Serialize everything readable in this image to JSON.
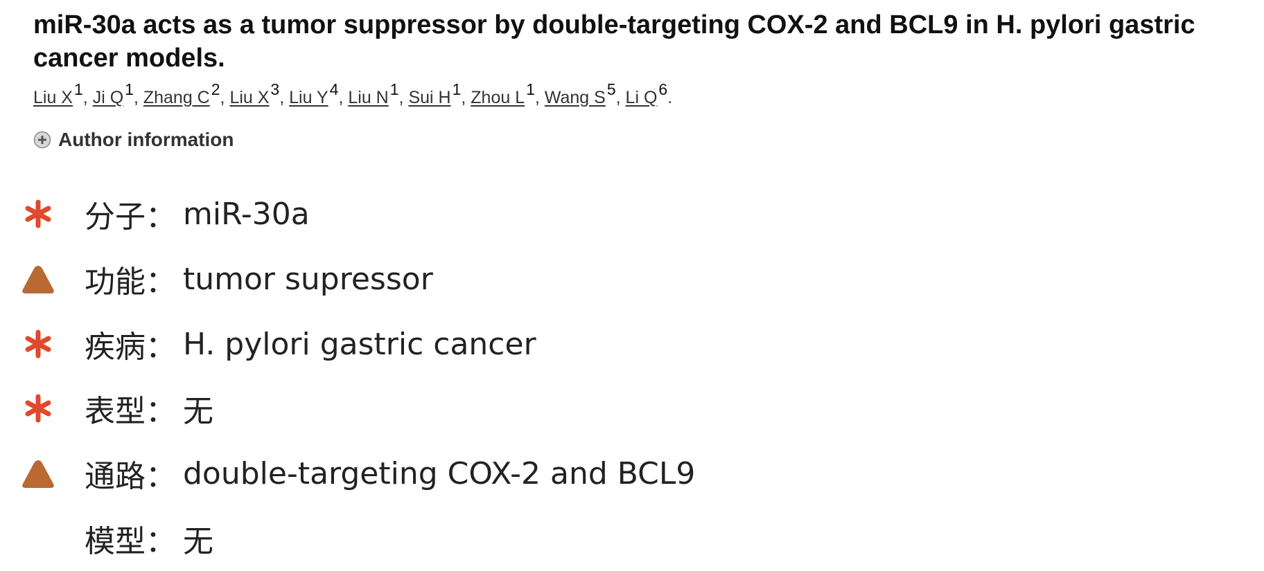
{
  "article": {
    "title": "miR-30a acts as a tumor suppressor by double-targeting COX-2 and BCL9 in H. pylori gastric cancer models.",
    "authors": [
      {
        "name": "Liu X",
        "affiliation": "1"
      },
      {
        "name": "Ji Q",
        "affiliation": "1"
      },
      {
        "name": "Zhang C",
        "affiliation": "2"
      },
      {
        "name": "Liu X",
        "affiliation": "3"
      },
      {
        "name": "Liu Y",
        "affiliation": "4"
      },
      {
        "name": "Liu N",
        "affiliation": "1"
      },
      {
        "name": "Sui H",
        "affiliation": "1"
      },
      {
        "name": "Zhou L",
        "affiliation": "1"
      },
      {
        "name": "Wang S",
        "affiliation": "5"
      },
      {
        "name": "Li Q",
        "affiliation": "6"
      }
    ],
    "author_separator": ", ",
    "author_terminator": ".",
    "author_information_label": "Author information"
  },
  "annotations": [
    {
      "marker": "asterisk",
      "label": "分子：",
      "value": "miR-30a"
    },
    {
      "marker": "triangle",
      "label": "功能：",
      "value": "tumor supressor"
    },
    {
      "marker": "asterisk",
      "label": "疾病：",
      "value": "H. pylori gastric cancer"
    },
    {
      "marker": "asterisk",
      "label": "表型：",
      "value": "无"
    },
    {
      "marker": "triangle",
      "label": "通路：",
      "value": "double-targeting COX-2 and BCL9"
    },
    {
      "marker": "none",
      "label": "模型：",
      "value": "无"
    }
  ],
  "colors": {
    "asterisk": "#e0492e",
    "triangle": "#b96a33",
    "link": "#333333"
  },
  "icons": {
    "expand": "plus-circle-icon",
    "asterisk": "red-asterisk-icon",
    "triangle": "brown-triangle-icon"
  }
}
